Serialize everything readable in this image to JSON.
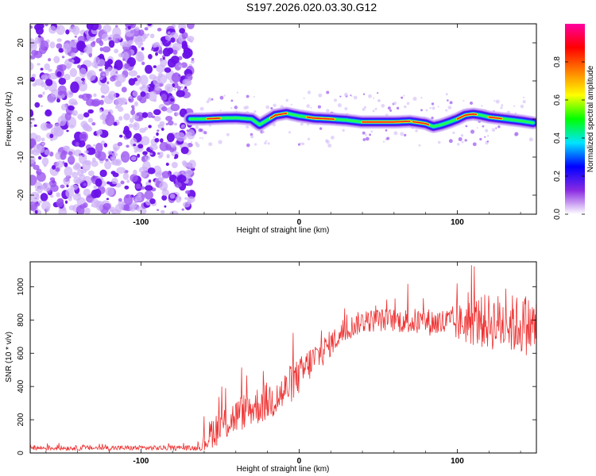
{
  "chart_data": [
    {
      "type": "heatmap",
      "title": "S197.2026.020.03.30.G12",
      "xlabel": "Height of straight line (km)",
      "ylabel": "Frequency (Hz)",
      "xlim": [
        -170,
        150
      ],
      "ylim": [
        -25,
        25
      ],
      "x_ticks": [
        -100,
        0,
        100
      ],
      "x_tick_labels": [
        "-100",
        "0",
        "100"
      ],
      "y_ticks": [
        20,
        10,
        0,
        -10,
        -20
      ],
      "y_tick_labels": [
        "20",
        "10",
        "0",
        "-10",
        "-20"
      ],
      "noise_region_x": [
        -170,
        -69
      ],
      "ridge": {
        "x": [
          -69,
          -60,
          -50,
          -40,
          -30,
          -25,
          -15,
          -8,
          0,
          10,
          20,
          30,
          40,
          50,
          60,
          70,
          80,
          85,
          90,
          95,
          100,
          105,
          110,
          115,
          120,
          130,
          140,
          148
        ],
        "frequency": [
          0.0,
          0.0,
          0.2,
          0.3,
          0.0,
          -1.5,
          1.0,
          1.5,
          0.8,
          0.2,
          0.0,
          -0.3,
          -0.8,
          -0.8,
          -0.8,
          -0.6,
          -1.2,
          -2.0,
          -1.5,
          -0.8,
          0.0,
          1.0,
          1.3,
          1.0,
          0.5,
          0.0,
          -0.5,
          -1.0
        ]
      },
      "colorbar": {
        "label": "Normalized spectral amplitude",
        "range": [
          0.0,
          1.0
        ],
        "ticks": [
          0.0,
          0.2,
          0.4,
          0.6,
          0.8
        ],
        "tick_labels": [
          "0.0",
          "0.2",
          "0.4",
          "0.6",
          "0.8"
        ],
        "colors": [
          "#ffffff",
          "#8a2be2",
          "#0000ff",
          "#00e5ff",
          "#00ff00",
          "#ffff00",
          "#ff8000",
          "#ff0000",
          "#ff00a0"
        ]
      }
    },
    {
      "type": "line",
      "xlabel": "Height of straight line (km)",
      "ylabel": "SNR (10 * v/v)",
      "xlim": [
        -170,
        150
      ],
      "ylim": [
        0,
        1150
      ],
      "x_ticks": [
        -100,
        0,
        100
      ],
      "x_tick_labels": [
        "-100",
        "0",
        "100"
      ],
      "y_ticks": [
        0,
        200,
        400,
        600,
        800,
        1000
      ],
      "y_tick_labels": [
        "0",
        "200",
        "400",
        "600",
        "800",
        "1000"
      ],
      "series": [
        {
          "name": "SNR",
          "color": "#ee3333",
          "x": [
            -170,
            -150,
            -130,
            -110,
            -90,
            -70,
            -62,
            -60,
            -55,
            -50,
            -45,
            -40,
            -35,
            -30,
            -25,
            -20,
            -15,
            -10,
            -5,
            0,
            5,
            10,
            15,
            20,
            25,
            30,
            35,
            40,
            50,
            60,
            70,
            80,
            90,
            100,
            110,
            120,
            130,
            140,
            150
          ],
          "y": [
            30,
            30,
            30,
            30,
            30,
            30,
            30,
            60,
            130,
            160,
            190,
            220,
            250,
            270,
            290,
            310,
            330,
            360,
            420,
            460,
            520,
            570,
            610,
            660,
            700,
            740,
            770,
            790,
            800,
            800,
            790,
            790,
            780,
            780,
            790,
            790,
            780,
            770,
            760
          ],
          "noise_amplitude": [
            15,
            15,
            15,
            15,
            15,
            15,
            15,
            60,
            100,
            110,
            110,
            110,
            110,
            110,
            120,
            120,
            120,
            120,
            120,
            110,
            110,
            100,
            90,
            80,
            70,
            70,
            70,
            70,
            70,
            70,
            80,
            80,
            90,
            110,
            150,
            170,
            180,
            180,
            180
          ]
        }
      ]
    }
  ]
}
